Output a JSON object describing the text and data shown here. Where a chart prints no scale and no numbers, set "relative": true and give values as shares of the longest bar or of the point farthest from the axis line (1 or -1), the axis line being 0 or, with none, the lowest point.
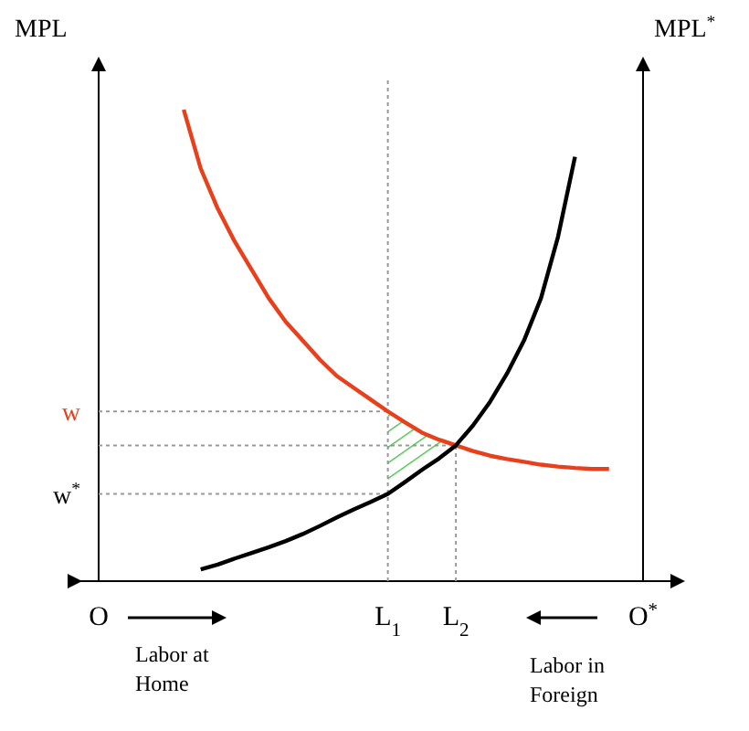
{
  "chart_data": {
    "type": "line",
    "relative": true,
    "ylabel": "MPL",
    "y2label": "MPL$^{*}$",
    "categories": [
      "O",
      null,
      null,
      null,
      null,
      null,
      null,
      null,
      null,
      null,
      null,
      null,
      null,
      null,
      null,
      null,
      null,
      "L$_{1}$",
      null,
      null,
      null,
      "L$_{2}$",
      null,
      null,
      null,
      null,
      null,
      null,
      null,
      null,
      null,
      null,
      "O$^{*}$"
    ],
    "series": [
      {
        "color": "#e8401c",
        "values": [
          null,
          null,
          null,
          null,
          null,
          1,
          0.875,
          0.79,
          0.72,
          0.66,
          0.6,
          0.55,
          0.51,
          0.47,
          0.435,
          0.41,
          0.385,
          0.36,
          0.337,
          0.315,
          0.3,
          0.288,
          0.276,
          0.266,
          0.259,
          0.253,
          0.247,
          0.243,
          0.24,
          0.238,
          0.238,
          null,
          null
        ]
      },
      {
        "color": "#000000",
        "values": [
          null,
          null,
          null,
          null,
          null,
          null,
          0.025,
          0.035,
          0.048,
          0.06,
          0.072,
          0.085,
          0.1,
          0.117,
          0.135,
          0.152,
          0.168,
          0.185,
          0.21,
          0.236,
          0.26,
          0.288,
          0.33,
          0.38,
          0.44,
          0.51,
          0.6,
          0.73,
          0.9,
          null,
          null,
          null,
          null
        ]
      }
    ],
    "ref_lines": [
      {
        "axis": "x",
        "value": "L$_{1}$",
        "color": "#999999",
        "line_style": "dotted"
      },
      {
        "axis": "x",
        "value": "L$_{2}$",
        "color": "#999999",
        "line_style": "dotted"
      },
      {
        "axis": "y",
        "value": 0.36,
        "label": "w",
        "color": "#999999",
        "line_style": "dotted"
      },
      {
        "axis": "y",
        "value": 0.288,
        "color": "#999999",
        "line_style": "dotted"
      },
      {
        "axis": "y",
        "value": 0.185,
        "label": "w$^{*}$",
        "color": "#999999",
        "line_style": "dotted"
      }
    ],
    "annotations": [
      "Labor at Home",
      "Labor in Foreign"
    ],
    "marker": "none",
    "line_style": "solid"
  }
}
